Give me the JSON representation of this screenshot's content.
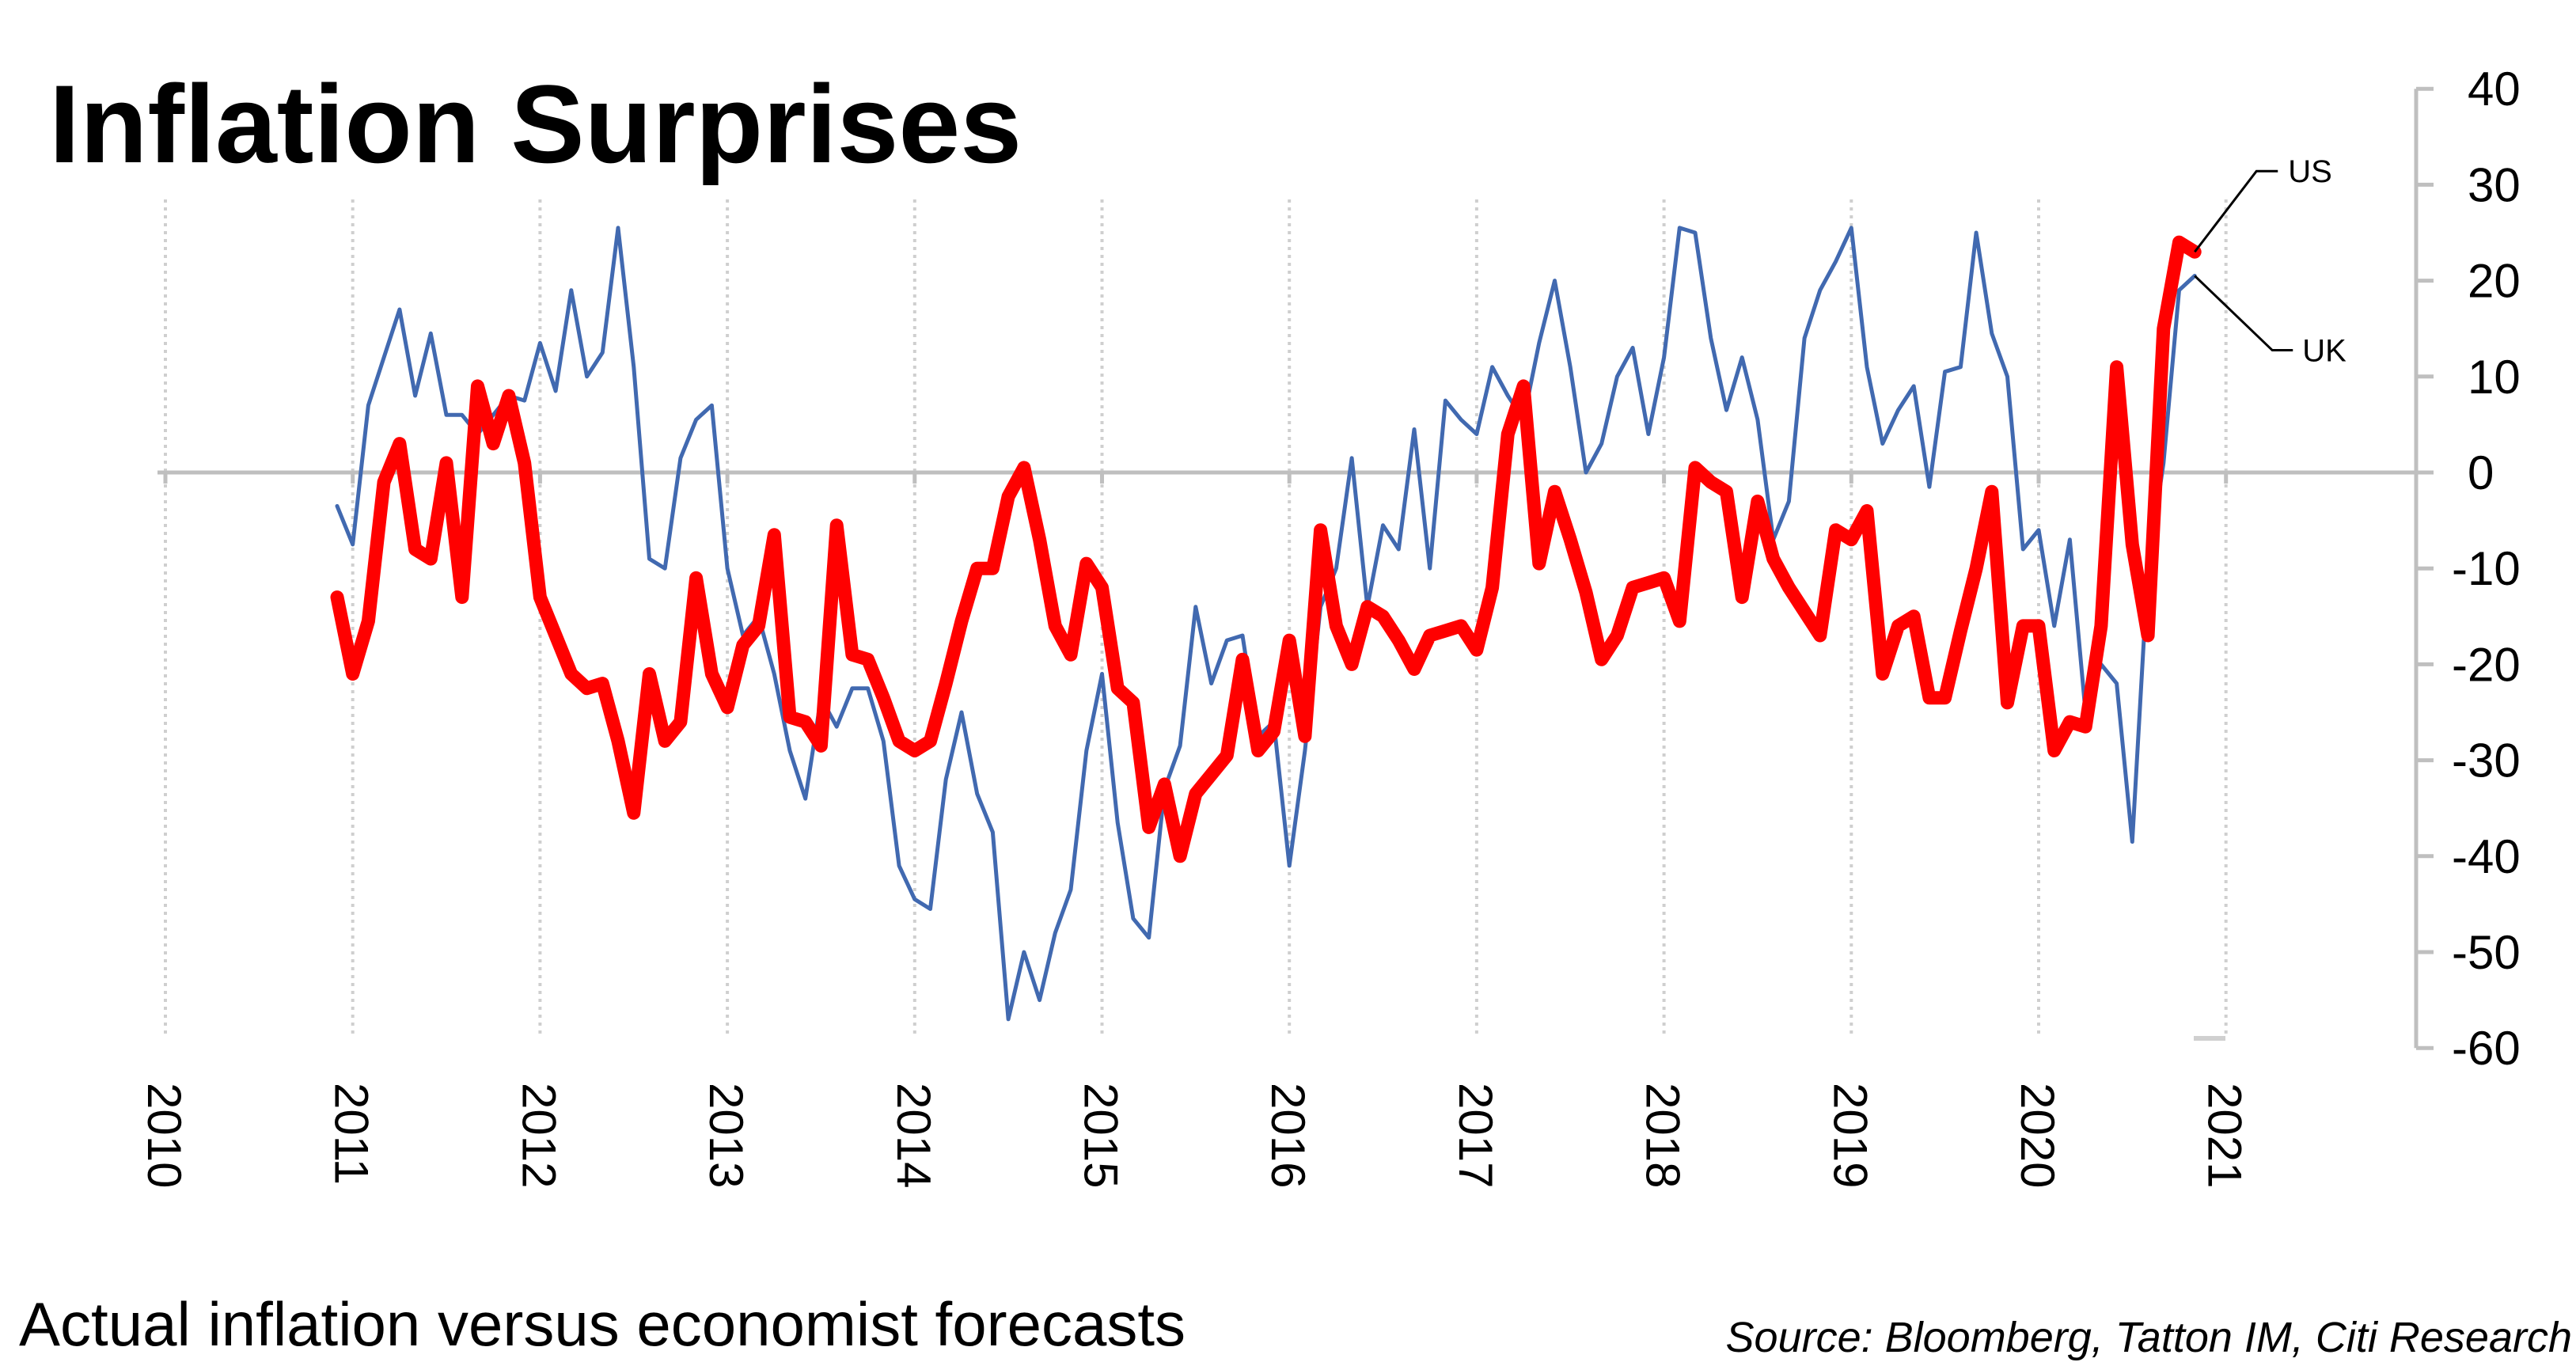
{
  "chart_data": {
    "type": "line",
    "title": "Inflation Surprises",
    "subtitle": "Actual inflation versus economist forecasts",
    "source": "Source: Bloomberg, Tatton IM, Citi Research",
    "xlabel": "",
    "ylabel": "",
    "x_start": "2010-12",
    "x_frequency": "monthly",
    "x_tick_labels": [
      "2010",
      "2011",
      "2012",
      "2013",
      "2014",
      "2015",
      "2016",
      "2017",
      "2018",
      "2019",
      "2020",
      "2021"
    ],
    "y_tick_labels": [
      "40",
      "30",
      "20",
      "10",
      "0",
      "-10",
      "-20",
      "-30",
      "-40",
      "-50",
      "-60"
    ],
    "ylim": [
      -60,
      40
    ],
    "y_axis_position": "right",
    "grid": "vertical dotted gridlines at each year",
    "legend": "callout labels at right end of lines",
    "series": [
      {
        "name": "US",
        "color": "#ff0000",
        "values": [
          -13,
          -21,
          -15.5,
          -1,
          3,
          -8,
          -9,
          1,
          -13,
          9,
          3,
          8,
          1,
          -13,
          -17,
          -21,
          -22.5,
          -22,
          -28,
          -35.5,
          -21,
          -28,
          -26,
          -11,
          -21,
          -24.5,
          -18,
          -16,
          -6.5,
          -25.5,
          -26,
          -28.5,
          -5.5,
          -19,
          -19.5,
          -23.5,
          -28,
          -29,
          -28,
          -22,
          -15.5,
          -10,
          -10,
          -2.5,
          0.5,
          -7,
          -16,
          -19,
          -9.5,
          -12,
          -22.5,
          -24,
          -37,
          -32.5,
          -40,
          -33.5,
          -31.5,
          -29.5,
          -19.5,
          -29,
          -27,
          -17.5,
          -27.5,
          -6,
          -16,
          -20,
          -14,
          -15,
          -17.5,
          -20.5,
          -17,
          -16.5,
          -16,
          -18.5,
          -12,
          4,
          9,
          -9.5,
          -2,
          -7,
          -12.5,
          -19.5,
          -17,
          -12,
          -11.5,
          -11,
          -15.5,
          0.5,
          -1,
          -2,
          -13,
          -3,
          -9,
          -12,
          -14.5,
          -17,
          -6,
          -7,
          -4,
          -21,
          -16,
          -15,
          -23.5,
          -23.5,
          -16.5,
          -10,
          -2,
          -24,
          -16,
          -16,
          -29,
          -26,
          -26.5,
          -16,
          11,
          -7.5,
          -17,
          15,
          24,
          23
        ]
      },
      {
        "name": "UK",
        "color": "#4169b0",
        "values": [
          -3.5,
          -7.5,
          7,
          12,
          17,
          8,
          14.5,
          6,
          6,
          4,
          6,
          8,
          7.5,
          13.5,
          8.5,
          19,
          10,
          12.5,
          25.5,
          11,
          -9,
          -10,
          1.5,
          5.5,
          7,
          -10,
          -17,
          -15,
          -21,
          -29,
          -34,
          -23.5,
          -26.5,
          -22.5,
          -22.5,
          -28,
          -41,
          -44.5,
          -45.5,
          -32,
          -25,
          -33.5,
          -37.5,
          -57,
          -50,
          -55,
          -48,
          -43.5,
          -29,
          -21,
          -36.5,
          -46.5,
          -48.5,
          -33,
          -28.5,
          -14,
          -22,
          -17.5,
          -17,
          -27.5,
          -26,
          -41,
          -29,
          -14,
          -10,
          1.5,
          -14,
          -5.5,
          -8,
          4.5,
          -10,
          7.5,
          5.5,
          4,
          11,
          8,
          5.5,
          13.5,
          20,
          11,
          0,
          3,
          10,
          13,
          4,
          12,
          25.5,
          25,
          14,
          6.5,
          12,
          5.5,
          -7,
          -3,
          14,
          19,
          22,
          25.5,
          11,
          3,
          6.5,
          9,
          -1.5,
          10.5,
          11,
          25,
          14.5,
          10,
          -8,
          -6,
          -16,
          -7,
          -25,
          -20,
          -22,
          -38.5,
          -10,
          1,
          19,
          20.5
        ]
      }
    ]
  }
}
